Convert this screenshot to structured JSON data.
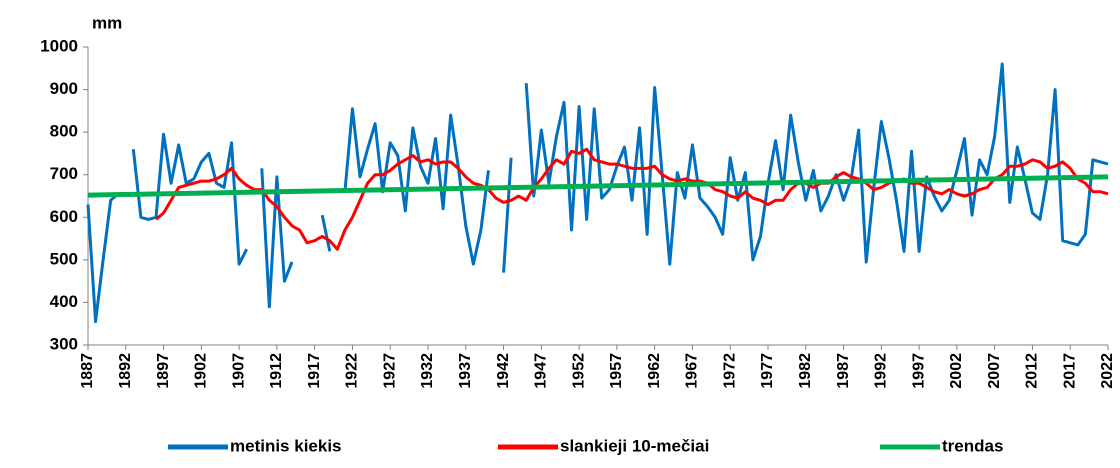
{
  "chart_data": {
    "type": "line",
    "y_label": "mm",
    "x": [
      1887,
      1888,
      1889,
      1890,
      1891,
      1892,
      1893,
      1894,
      1895,
      1896,
      1897,
      1898,
      1899,
      1900,
      1901,
      1902,
      1903,
      1904,
      1905,
      1906,
      1907,
      1908,
      1909,
      1910,
      1911,
      1912,
      1913,
      1914,
      1915,
      1916,
      1917,
      1918,
      1919,
      1920,
      1921,
      1922,
      1923,
      1924,
      1925,
      1926,
      1927,
      1928,
      1929,
      1930,
      1931,
      1932,
      1933,
      1934,
      1935,
      1936,
      1937,
      1938,
      1939,
      1940,
      1941,
      1942,
      1943,
      1944,
      1945,
      1946,
      1947,
      1948,
      1949,
      1950,
      1951,
      1952,
      1953,
      1954,
      1955,
      1956,
      1957,
      1958,
      1959,
      1960,
      1961,
      1962,
      1963,
      1964,
      1965,
      1966,
      1967,
      1968,
      1969,
      1970,
      1971,
      1972,
      1973,
      1974,
      1975,
      1976,
      1977,
      1978,
      1979,
      1980,
      1981,
      1982,
      1983,
      1984,
      1985,
      1986,
      1987,
      1988,
      1989,
      1990,
      1991,
      1992,
      1993,
      1994,
      1995,
      1996,
      1997,
      1998,
      1999,
      2000,
      2001,
      2002,
      2003,
      2004,
      2005,
      2006,
      2007,
      2008,
      2009,
      2010,
      2011,
      2012,
      2013,
      2014,
      2015,
      2016,
      2017,
      2018,
      2019,
      2020,
      2021,
      2022
    ],
    "series": [
      {
        "name": "metinis kiekis",
        "color": "#0070c0",
        "values": [
          630,
          355,
          500,
          640,
          655,
          null,
          760,
          600,
          595,
          600,
          795,
          680,
          770,
          680,
          690,
          730,
          750,
          680,
          670,
          775,
          490,
          525,
          null,
          715,
          390,
          695,
          450,
          495,
          null,
          null,
          null,
          605,
          520,
          null,
          660,
          855,
          695,
          760,
          820,
          660,
          775,
          745,
          615,
          810,
          720,
          680,
          785,
          620,
          840,
          720,
          580,
          490,
          570,
          710,
          null,
          470,
          740,
          null,
          915,
          650,
          805,
          680,
          790,
          870,
          570,
          860,
          595,
          855,
          645,
          665,
          720,
          765,
          640,
          810,
          560,
          905,
          700,
          490,
          705,
          645,
          770,
          645,
          625,
          600,
          560,
          740,
          640,
          705,
          500,
          555,
          680,
          780,
          665,
          840,
          730,
          640,
          710,
          615,
          650,
          700,
          640,
          690,
          805,
          495,
          670,
          825,
          740,
          640,
          520,
          755,
          520,
          695,
          650,
          615,
          640,
          710,
          785,
          605,
          735,
          700,
          790,
          960,
          635,
          765,
          690,
          610,
          595,
          700,
          900,
          545,
          540,
          535,
          560,
          735,
          730,
          725
        ]
      },
      {
        "name": "slankieji 10-mečiai",
        "color": "#ff0000",
        "values": [
          null,
          null,
          null,
          null,
          null,
          null,
          null,
          null,
          null,
          595,
          610,
          640,
          670,
          675,
          680,
          685,
          685,
          690,
          700,
          715,
          690,
          675,
          665,
          665,
          640,
          625,
          600,
          580,
          570,
          540,
          545,
          555,
          545,
          525,
          570,
          600,
          640,
          680,
          700,
          700,
          710,
          725,
          735,
          745,
          730,
          735,
          725,
          730,
          730,
          715,
          695,
          680,
          675,
          665,
          645,
          635,
          640,
          650,
          640,
          670,
          690,
          715,
          735,
          725,
          755,
          750,
          760,
          735,
          730,
          725,
          725,
          720,
          715,
          715,
          715,
          720,
          700,
          690,
          685,
          690,
          685,
          685,
          680,
          665,
          660,
          650,
          645,
          660,
          645,
          640,
          630,
          640,
          640,
          665,
          680,
          680,
          670,
          680,
          680,
          695,
          705,
          695,
          690,
          680,
          665,
          670,
          680,
          685,
          690,
          680,
          680,
          670,
          660,
          655,
          665,
          655,
          650,
          655,
          665,
          670,
          690,
          700,
          720,
          720,
          725,
          735,
          730,
          715,
          720,
          730,
          715,
          690,
          680,
          660,
          660,
          655
        ]
      },
      {
        "name": "trendas",
        "color": "#00b050",
        "x": [
          1887,
          2022
        ],
        "values": [
          652,
          695
        ]
      }
    ],
    "xlim": [
      1887,
      2022
    ],
    "xticks": [
      1887,
      1892,
      1897,
      1902,
      1907,
      1912,
      1917,
      1922,
      1927,
      1932,
      1937,
      1942,
      1947,
      1952,
      1957,
      1962,
      1967,
      1972,
      1977,
      1982,
      1987,
      1992,
      1997,
      2002,
      2007,
      2012,
      2017,
      2022
    ],
    "ylim": [
      300,
      1000
    ],
    "yticks": [
      300,
      400,
      500,
      600,
      700,
      800,
      900,
      1000
    ],
    "grid": false,
    "legend": "bottom"
  }
}
